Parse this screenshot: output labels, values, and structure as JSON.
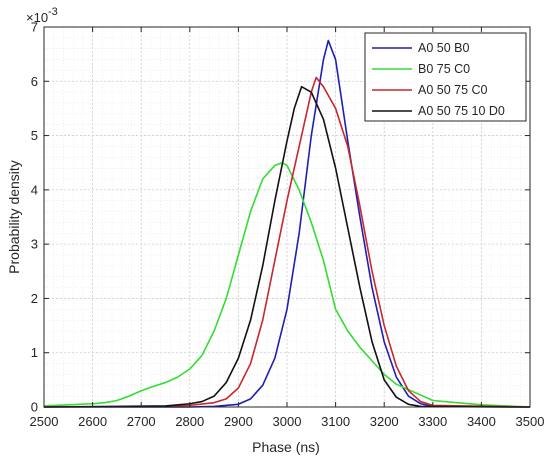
{
  "chart_data": {
    "type": "line",
    "xlabel": "Phase (ns)",
    "ylabel": "Probability density",
    "exponent_base": "×10",
    "exponent_power": "-3",
    "xlim": [
      2500,
      3500
    ],
    "ylim": [
      0,
      7
    ],
    "x_ticks": [
      2500,
      2600,
      2700,
      2800,
      2900,
      3000,
      3100,
      3200,
      3300,
      3400,
      3500
    ],
    "y_ticks": [
      0,
      1,
      2,
      3,
      4,
      5,
      6,
      7
    ],
    "grid": true,
    "minor_grid": true,
    "legend_position": "top-right",
    "series": [
      {
        "name": "A0 50 B0",
        "color": "#1f1fb4",
        "points": [
          [
            2500,
            0
          ],
          [
            2800,
            0
          ],
          [
            2850,
            0.01
          ],
          [
            2900,
            0.05
          ],
          [
            2925,
            0.15
          ],
          [
            2950,
            0.4
          ],
          [
            2975,
            0.9
          ],
          [
            3000,
            1.8
          ],
          [
            3025,
            3.2
          ],
          [
            3050,
            5.0
          ],
          [
            3075,
            6.4
          ],
          [
            3085,
            6.75
          ],
          [
            3100,
            6.4
          ],
          [
            3110,
            5.8
          ],
          [
            3125,
            4.9
          ],
          [
            3150,
            3.5
          ],
          [
            3175,
            2.2
          ],
          [
            3200,
            1.2
          ],
          [
            3225,
            0.55
          ],
          [
            3250,
            0.2
          ],
          [
            3275,
            0.06
          ],
          [
            3300,
            0.01
          ],
          [
            3500,
            0
          ]
        ]
      },
      {
        "name": "B0 75 C0",
        "color": "#33dd33",
        "points": [
          [
            2500,
            0.02
          ],
          [
            2550,
            0.04
          ],
          [
            2600,
            0.06
          ],
          [
            2625,
            0.08
          ],
          [
            2650,
            0.12
          ],
          [
            2675,
            0.2
          ],
          [
            2700,
            0.3
          ],
          [
            2725,
            0.38
          ],
          [
            2750,
            0.45
          ],
          [
            2775,
            0.55
          ],
          [
            2800,
            0.7
          ],
          [
            2825,
            0.95
          ],
          [
            2850,
            1.4
          ],
          [
            2875,
            2.0
          ],
          [
            2900,
            2.8
          ],
          [
            2925,
            3.6
          ],
          [
            2950,
            4.2
          ],
          [
            2975,
            4.45
          ],
          [
            2990,
            4.5
          ],
          [
            3000,
            4.45
          ],
          [
            3025,
            4.0
          ],
          [
            3050,
            3.4
          ],
          [
            3075,
            2.7
          ],
          [
            3100,
            1.8
          ],
          [
            3125,
            1.4
          ],
          [
            3150,
            1.1
          ],
          [
            3175,
            0.85
          ],
          [
            3200,
            0.6
          ],
          [
            3225,
            0.42
          ],
          [
            3250,
            0.32
          ],
          [
            3275,
            0.22
          ],
          [
            3300,
            0.12
          ],
          [
            3350,
            0.08
          ],
          [
            3400,
            0.04
          ],
          [
            3450,
            0.02
          ],
          [
            3500,
            0
          ]
        ]
      },
      {
        "name": "A0 50 75 C0",
        "color": "#c8282d",
        "points": [
          [
            2500,
            0
          ],
          [
            2750,
            0.01
          ],
          [
            2800,
            0.03
          ],
          [
            2850,
            0.08
          ],
          [
            2875,
            0.15
          ],
          [
            2900,
            0.35
          ],
          [
            2925,
            0.8
          ],
          [
            2950,
            1.6
          ],
          [
            2975,
            2.7
          ],
          [
            3000,
            3.8
          ],
          [
            3025,
            4.8
          ],
          [
            3050,
            5.8
          ],
          [
            3060,
            6.07
          ],
          [
            3075,
            5.9
          ],
          [
            3100,
            5.5
          ],
          [
            3125,
            4.8
          ],
          [
            3150,
            3.7
          ],
          [
            3175,
            2.5
          ],
          [
            3200,
            1.5
          ],
          [
            3225,
            0.75
          ],
          [
            3250,
            0.3
          ],
          [
            3275,
            0.1
          ],
          [
            3300,
            0.03
          ],
          [
            3500,
            0
          ]
        ]
      },
      {
        "name": "A0 50 75 10 D0",
        "color": "#111111",
        "points": [
          [
            2500,
            0
          ],
          [
            2750,
            0.02
          ],
          [
            2800,
            0.06
          ],
          [
            2825,
            0.1
          ],
          [
            2850,
            0.2
          ],
          [
            2875,
            0.45
          ],
          [
            2900,
            0.9
          ],
          [
            2925,
            1.6
          ],
          [
            2950,
            2.6
          ],
          [
            2975,
            3.8
          ],
          [
            3000,
            4.9
          ],
          [
            3015,
            5.5
          ],
          [
            3030,
            5.9
          ],
          [
            3050,
            5.8
          ],
          [
            3075,
            5.3
          ],
          [
            3100,
            4.4
          ],
          [
            3125,
            3.3
          ],
          [
            3150,
            2.2
          ],
          [
            3175,
            1.2
          ],
          [
            3200,
            0.5
          ],
          [
            3225,
            0.18
          ],
          [
            3250,
            0.05
          ],
          [
            3275,
            0.01
          ],
          [
            3500,
            0
          ]
        ]
      }
    ]
  }
}
